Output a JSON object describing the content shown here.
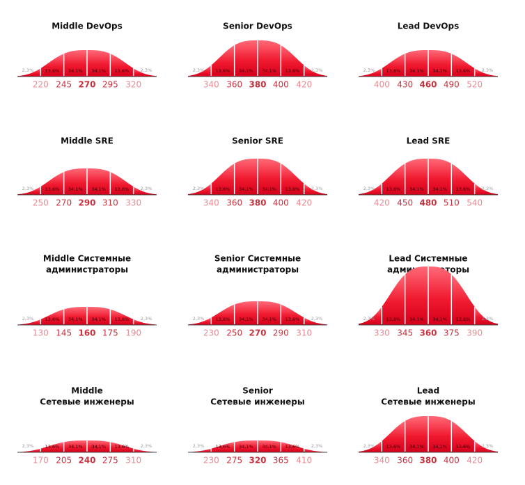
{
  "chart_data": [
    {
      "type": "bell",
      "title": [
        "Middle DevOps"
      ],
      "values": [
        2.3,
        13.6,
        34.1,
        34.1,
        13.6,
        2.3
      ],
      "value_labels": [
        "2,3%",
        "13,6%",
        "34,1%",
        "34,1%",
        "13,6%",
        "2,3%"
      ],
      "xticks": [
        220,
        245,
        270,
        295,
        320
      ],
      "xlim": [
        195,
        345
      ],
      "color": "#e3001b"
    },
    {
      "type": "bell",
      "title": [
        "Senior DevOps"
      ],
      "values": [
        2.3,
        13.6,
        34.1,
        34.1,
        13.6,
        2.3
      ],
      "value_labels": [
        "2,3%",
        "13,6%",
        "34,1%",
        "34,1%",
        "13,6%",
        "2,3%"
      ],
      "xticks": [
        340,
        360,
        380,
        400,
        420
      ],
      "xlim": [
        320,
        440
      ],
      "color": "#e3001b"
    },
    {
      "type": "bell",
      "title": [
        "Lead DevOps"
      ],
      "values": [
        2.3,
        13.6,
        34.1,
        34.1,
        13.6,
        2.3
      ],
      "value_labels": [
        "2,3%",
        "13,6%",
        "34,1%",
        "34,1%",
        "13,6%",
        "2,3%"
      ],
      "xticks": [
        400,
        430,
        460,
        490,
        520
      ],
      "xlim": [
        370,
        550
      ],
      "color": "#e3001b"
    },
    {
      "type": "bell",
      "title": [
        "Middle SRE"
      ],
      "values": [
        2.3,
        13.6,
        34.1,
        34.1,
        13.6,
        2.3
      ],
      "value_labels": [
        "2,3%",
        "13,6%",
        "34,1%",
        "34,1%",
        "13,6%",
        "2,3%"
      ],
      "xticks": [
        250,
        270,
        290,
        310,
        330
      ],
      "xlim": [
        230,
        350
      ],
      "color": "#e3001b"
    },
    {
      "type": "bell",
      "title": [
        "Senior SRE"
      ],
      "values": [
        2.3,
        13.6,
        34.1,
        34.1,
        13.6,
        2.3
      ],
      "value_labels": [
        "2,3%",
        "13,6%",
        "34,1%",
        "34,1%",
        "13,6%",
        "2,3%"
      ],
      "xticks": [
        340,
        360,
        380,
        400,
        420
      ],
      "xlim": [
        320,
        440
      ],
      "color": "#e3001b"
    },
    {
      "type": "bell",
      "title": [
        "Lead SRE"
      ],
      "values": [
        2.3,
        13.6,
        34.1,
        34.1,
        13.6,
        2.3
      ],
      "value_labels": [
        "2,3%",
        "13,6%",
        "34,1%",
        "34,1%",
        "13,6%",
        "2,3%"
      ],
      "xticks": [
        420,
        450,
        480,
        510,
        540
      ],
      "xlim": [
        390,
        570
      ],
      "color": "#e3001b"
    },
    {
      "type": "bell",
      "title": [
        "Middle Системные",
        "администраторы"
      ],
      "values": [
        2.3,
        13.6,
        34.1,
        34.1,
        13.6,
        2.3
      ],
      "value_labels": [
        "2,3%",
        "13,6%",
        "34,1%",
        "34,1%",
        "13,6%",
        "2,3%"
      ],
      "xticks": [
        130,
        145,
        160,
        175,
        190
      ],
      "xlim": [
        115,
        205
      ],
      "color": "#e3001b"
    },
    {
      "type": "bell",
      "title": [
        "Senior Системные",
        "администраторы"
      ],
      "values": [
        2.3,
        13.6,
        34.1,
        34.1,
        13.6,
        2.3
      ],
      "value_labels": [
        "2,3%",
        "13,6%",
        "34,1%",
        "34,1%",
        "13,6%",
        "2,3%"
      ],
      "xticks": [
        230,
        250,
        270,
        290,
        310
      ],
      "xlim": [
        210,
        330
      ],
      "color": "#e3001b"
    },
    {
      "type": "bell",
      "title": [
        "Lead Системные",
        "администраторы"
      ],
      "values": [
        2.3,
        13.6,
        34.1,
        34.1,
        13.6,
        2.3
      ],
      "value_labels": [
        "2,3%",
        "13,6%",
        "34,1%",
        "34,1%",
        "13,6%",
        "2,3%"
      ],
      "xticks": [
        330,
        345,
        360,
        375,
        390
      ],
      "xlim": [
        315,
        405
      ],
      "color": "#e3001b"
    },
    {
      "type": "bell",
      "title": [
        "Middle",
        "Сетевые инженеры"
      ],
      "values": [
        2.3,
        13.6,
        34.1,
        34.1,
        13.6,
        2.3
      ],
      "value_labels": [
        "2,3%",
        "13,6%",
        "34,1%",
        "34,1%",
        "13,6%",
        "2,3%"
      ],
      "xticks": [
        170,
        205,
        240,
        275,
        310
      ],
      "xlim": [
        135,
        345
      ],
      "color": "#e3001b"
    },
    {
      "type": "bell",
      "title": [
        "Senior",
        "Сетевые инженеры"
      ],
      "values": [
        2.3,
        13.6,
        34.1,
        34.1,
        13.6,
        2.3
      ],
      "value_labels": [
        "2,3%",
        "13,6%",
        "34,1%",
        "34,1%",
        "13,6%",
        "2,3%"
      ],
      "xticks": [
        230,
        275,
        320,
        365,
        410
      ],
      "xlim": [
        185,
        455
      ],
      "color": "#e3001b"
    },
    {
      "type": "bell",
      "title": [
        "Lead",
        "Сетевые инженеры"
      ],
      "values": [
        2.3,
        13.6,
        34.1,
        34.1,
        13.6,
        2.3
      ],
      "value_labels": [
        "2,3%",
        "13,6%",
        "34,1%",
        "34,1%",
        "13,6%",
        "2,3%"
      ],
      "xticks": [
        340,
        360,
        380,
        400,
        420
      ],
      "xlim": [
        320,
        440
      ],
      "color": "#e3001b"
    }
  ]
}
